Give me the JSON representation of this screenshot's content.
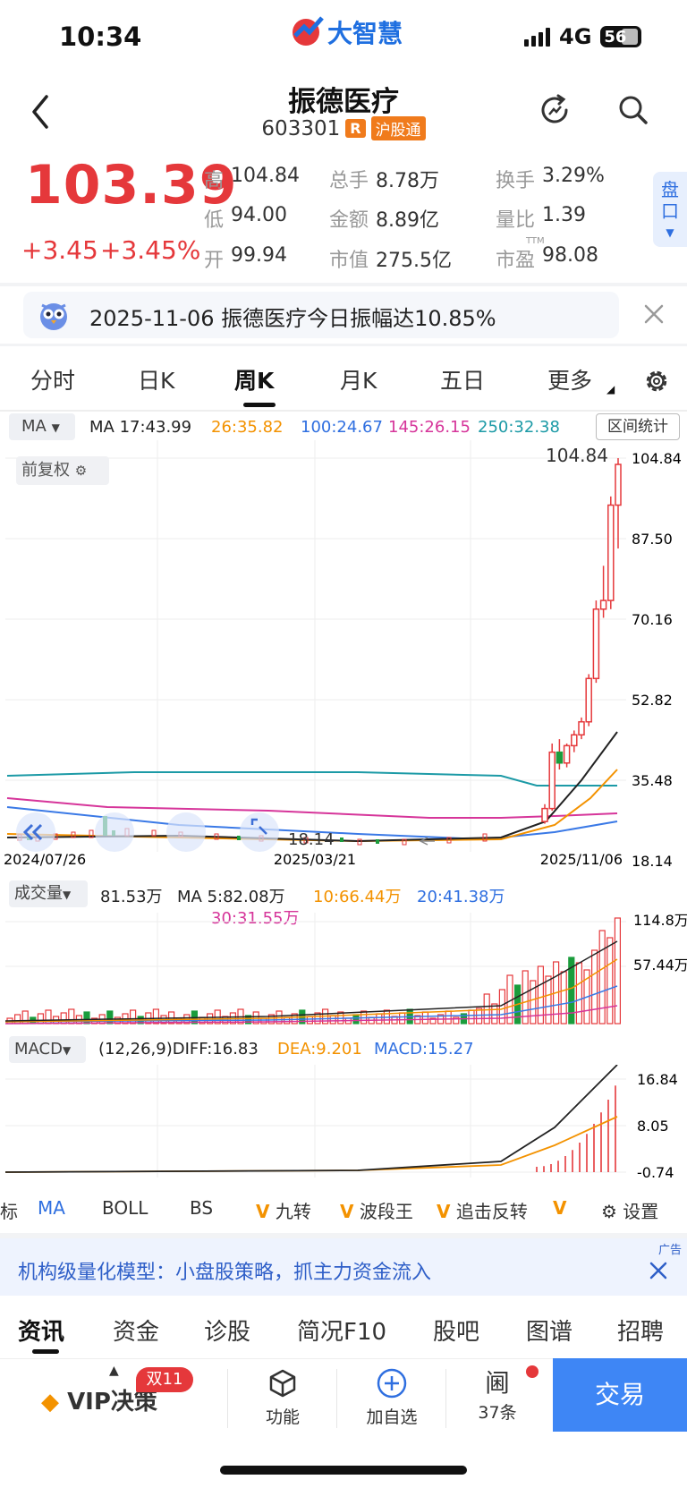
{
  "status": {
    "time": "10:34",
    "app_logo_text": "大智慧",
    "network": "4G",
    "battery": "56"
  },
  "header": {
    "name": "振德医疗",
    "code": "603301",
    "tag_r": "R",
    "tag_market": "沪股通"
  },
  "quote": {
    "price": "103.39",
    "change": "+3.45",
    "change_pct": "+3.45%",
    "high_label": "高",
    "high": "104.84",
    "low_label": "低",
    "low": "94.00",
    "open_label": "开",
    "open": "99.94",
    "vol_label": "总手",
    "vol": "8.78万",
    "amt_label": "金额",
    "amt": "8.89亿",
    "mcap_label": "市值",
    "mcap": "275.5亿",
    "turnover_label": "换手",
    "turnover": "3.29%",
    "ratio_label": "量比",
    "ratio": "1.39",
    "pe_label": "市盈",
    "pe_sup": "TTM",
    "pe": "98.08",
    "pankou": "盘口"
  },
  "news": {
    "text": "2025-11-06 振德医疗今日振幅达10.85%"
  },
  "period_tabs": [
    "分时",
    "日K",
    "周K",
    "月K",
    "五日",
    "更多"
  ],
  "ma_row": {
    "select": "MA",
    "ma5": "MA 17:43.99",
    "ma10": "26:35.82",
    "ma20": "100:24.67",
    "ma30": "145:26.15",
    "ma60": "250:32.38",
    "range_stats": "区间统计",
    "fuquan": "前复权"
  },
  "kline_axis": {
    "y_labels": [
      "104.84",
      "87.50",
      "70.16",
      "52.82",
      "35.48",
      "18.14"
    ],
    "x_labels": [
      "2024/07/26",
      "2025/03/21",
      "2025/11/06"
    ],
    "high_marker": "104.84",
    "low_marker": "18.14"
  },
  "volume": {
    "select": "成交量",
    "value": "81.53万",
    "ma5": "MA 5:82.08万",
    "ma10": "10:66.44万",
    "ma20": "20:41.38万",
    "ma30": "30:31.55万",
    "y_labels": [
      "114.8万",
      "57.44万"
    ]
  },
  "macd": {
    "select": "MACD",
    "params": "(12,26,9)DIFF:16.83",
    "dea": "DEA:9.201",
    "macd": "MACD:15.27",
    "y_labels": [
      "16.84",
      "8.05",
      "-0.74"
    ]
  },
  "indicators": {
    "items": [
      "标",
      "MA",
      "BOLL",
      "BS",
      "九转",
      "波段王",
      "追击反转",
      "V"
    ],
    "v_mark": "V",
    "settings": "设置"
  },
  "ad": {
    "text": "机构级量化模型：小盘股策略，抓主力资金流入",
    "tag": "广告"
  },
  "bottom_tabs": [
    "资讯",
    "资金",
    "诊股",
    "简况F10",
    "股吧",
    "图谱",
    "招聘"
  ],
  "actions": {
    "vip": "VIP决策",
    "vip_badge": "双11",
    "func": "功能",
    "add": "加自选",
    "msgs_icon_text": "阃",
    "msgs": "37条",
    "trade": "交易"
  },
  "chart_data": [
    {
      "type": "candlestick",
      "title": "",
      "ylim": [
        18.14,
        104.84
      ],
      "x_ticks": [
        "2024/07/26",
        "2025/03/21",
        "2025/11/06"
      ],
      "recent_weeks": [
        {
          "o": 21.0,
          "h": 25.0,
          "l": 20.5,
          "c": 24.0
        },
        {
          "o": 24.0,
          "h": 39.0,
          "l": 23.5,
          "c": 37.0
        },
        {
          "o": 37.0,
          "h": 40.0,
          "l": 33.0,
          "c": 34.5
        },
        {
          "o": 34.5,
          "h": 39.0,
          "l": 33.5,
          "c": 38.5
        },
        {
          "o": 38.5,
          "h": 42.0,
          "l": 37.0,
          "c": 41.0
        },
        {
          "o": 41.0,
          "h": 45.0,
          "l": 40.0,
          "c": 44.0
        },
        {
          "o": 44.0,
          "h": 55.0,
          "l": 43.0,
          "c": 54.0
        },
        {
          "o": 54.0,
          "h": 72.0,
          "l": 53.0,
          "c": 70.0
        },
        {
          "o": 70.0,
          "h": 80.0,
          "l": 68.0,
          "c": 72.0
        },
        {
          "o": 72.0,
          "h": 96.0,
          "l": 70.0,
          "c": 94.0
        },
        {
          "o": 94.0,
          "h": 104.84,
          "l": 84.0,
          "c": 103.39
        }
      ]
    },
    {
      "type": "bar",
      "title": "成交量",
      "series": [
        {
          "name": "成交量",
          "values": [
            81.53
          ]
        }
      ],
      "ylim": [
        0,
        114.8
      ]
    },
    {
      "type": "line",
      "title": "MACD",
      "series": [
        {
          "name": "DIFF",
          "values": [
            16.83
          ]
        },
        {
          "name": "DEA",
          "values": [
            9.201
          ]
        },
        {
          "name": "MACD",
          "values": [
            15.27
          ]
        }
      ],
      "ylim": [
        -0.74,
        16.84
      ]
    }
  ]
}
